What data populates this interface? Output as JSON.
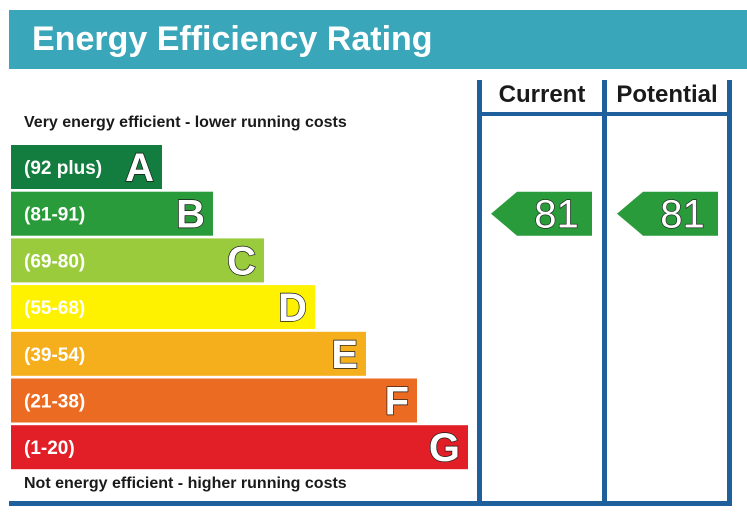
{
  "title": "Energy Efficiency Rating",
  "columns": {
    "current": "Current",
    "potential": "Potential"
  },
  "captions": {
    "top": "Very energy efficient - lower running costs",
    "bottom": "Not energy efficient - higher running costs"
  },
  "chart_data": {
    "type": "bar",
    "title": "Energy Efficiency Rating",
    "bands": [
      {
        "letter": "A",
        "range": "(92 plus)",
        "min": 92,
        "max": 100,
        "color": "#127d3e"
      },
      {
        "letter": "B",
        "range": "(81-91)",
        "min": 81,
        "max": 91,
        "color": "#2a9b3a"
      },
      {
        "letter": "C",
        "range": "(69-80)",
        "min": 69,
        "max": 80,
        "color": "#9acb3c"
      },
      {
        "letter": "D",
        "range": "(55-68)",
        "min": 55,
        "max": 68,
        "color": "#fff200"
      },
      {
        "letter": "E",
        "range": "(39-54)",
        "min": 39,
        "max": 54,
        "color": "#f5ae1c"
      },
      {
        "letter": "F",
        "range": "(21-38)",
        "min": 21,
        "max": 38,
        "color": "#ec6b23"
      },
      {
        "letter": "G",
        "range": "(1-20)",
        "min": 1,
        "max": 20,
        "color": "#e21e26"
      }
    ],
    "current": {
      "value": 81,
      "band": "B",
      "color": "#2a9b3a"
    },
    "potential": {
      "value": 81,
      "band": "B",
      "color": "#2a9b3a"
    }
  }
}
